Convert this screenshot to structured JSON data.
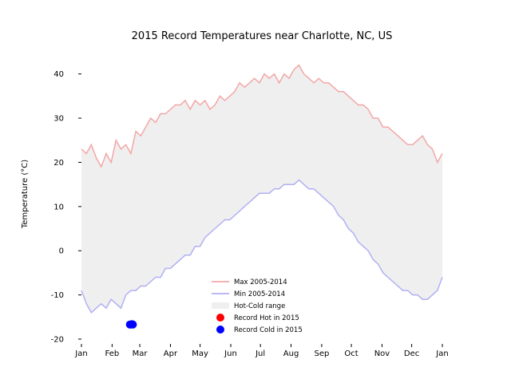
{
  "chart_data": {
    "type": "line",
    "title": "2015 Record Temperatures near Charlotte, NC, US",
    "xlabel": "",
    "ylabel": "Temperature (°C)",
    "ylim": [
      -20,
      45
    ],
    "xlim": [
      0,
      365
    ],
    "y_ticks": [
      -20,
      -10,
      0,
      10,
      20,
      30,
      40
    ],
    "x_ticks": [
      {
        "day": 0,
        "label": "Jan"
      },
      {
        "day": 31,
        "label": "Feb"
      },
      {
        "day": 59,
        "label": "Mar"
      },
      {
        "day": 90,
        "label": "Apr"
      },
      {
        "day": 120,
        "label": "May"
      },
      {
        "day": 151,
        "label": "Jun"
      },
      {
        "day": 181,
        "label": "Jul"
      },
      {
        "day": 212,
        "label": "Aug"
      },
      {
        "day": 243,
        "label": "Sep"
      },
      {
        "day": 273,
        "label": "Oct"
      },
      {
        "day": 304,
        "label": "Nov"
      },
      {
        "day": 334,
        "label": "Dec"
      },
      {
        "day": 365,
        "label": "Jan"
      }
    ],
    "grid": false,
    "legend_position": "lower-center",
    "series": [
      {
        "name": "Max 2005-2014",
        "color": "#f4a6a6",
        "x": [
          0,
          5,
          10,
          15,
          20,
          25,
          30,
          35,
          40,
          45,
          50,
          55,
          60,
          65,
          70,
          75,
          80,
          85,
          90,
          95,
          100,
          105,
          110,
          115,
          120,
          125,
          130,
          135,
          140,
          145,
          150,
          155,
          160,
          165,
          170,
          175,
          180,
          185,
          190,
          195,
          200,
          205,
          210,
          215,
          220,
          225,
          230,
          235,
          240,
          245,
          250,
          255,
          260,
          265,
          270,
          275,
          280,
          285,
          290,
          295,
          300,
          305,
          310,
          315,
          320,
          325,
          330,
          335,
          340,
          345,
          350,
          355,
          360,
          365
        ],
        "y": [
          23,
          22,
          24,
          21,
          19,
          22,
          20,
          25,
          23,
          24,
          22,
          27,
          26,
          28,
          30,
          29,
          31,
          31,
          32,
          33,
          33,
          34,
          32,
          34,
          33,
          34,
          32,
          33,
          35,
          34,
          35,
          36,
          38,
          37,
          38,
          39,
          38,
          40,
          39,
          40,
          38,
          40,
          39,
          41,
          42,
          40,
          39,
          38,
          39,
          38,
          38,
          37,
          36,
          36,
          35,
          34,
          33,
          33,
          32,
          30,
          30,
          28,
          28,
          27,
          26,
          25,
          24,
          24,
          25,
          26,
          24,
          23,
          20,
          22
        ]
      },
      {
        "name": "Min 2005-2014",
        "color": "#b0b0f4",
        "x": [
          0,
          5,
          10,
          15,
          20,
          25,
          30,
          35,
          40,
          45,
          50,
          55,
          60,
          65,
          70,
          75,
          80,
          85,
          90,
          95,
          100,
          105,
          110,
          115,
          120,
          125,
          130,
          135,
          140,
          145,
          150,
          155,
          160,
          165,
          170,
          175,
          180,
          185,
          190,
          195,
          200,
          205,
          210,
          215,
          220,
          225,
          230,
          235,
          240,
          245,
          250,
          255,
          260,
          265,
          270,
          275,
          280,
          285,
          290,
          295,
          300,
          305,
          310,
          315,
          320,
          325,
          330,
          335,
          340,
          345,
          350,
          355,
          360,
          365
        ],
        "y": [
          -9,
          -12,
          -14,
          -13,
          -12,
          -13,
          -11,
          -12,
          -13,
          -10,
          -9,
          -9,
          -8,
          -8,
          -7,
          -6,
          -6,
          -4,
          -4,
          -3,
          -2,
          -1,
          -1,
          1,
          1,
          3,
          4,
          5,
          6,
          7,
          7,
          8,
          9,
          10,
          11,
          12,
          13,
          13,
          13,
          14,
          14,
          15,
          15,
          15,
          16,
          15,
          14,
          14,
          13,
          12,
          11,
          10,
          8,
          7,
          5,
          4,
          2,
          1,
          0,
          -2,
          -3,
          -5,
          -6,
          -7,
          -8,
          -9,
          -9,
          -10,
          -10,
          -11,
          -11,
          -10,
          -9,
          -6
        ]
      }
    ],
    "fill_between": {
      "name": "Hot-Cold range",
      "color": "#efefef",
      "between": [
        "Max 2005-2014",
        "Min 2005-2014"
      ]
    },
    "scatter": [
      {
        "name": "Record Hot in 2015",
        "color": "#ff0000",
        "points": []
      },
      {
        "name": "Record Cold in 2015",
        "color": "#0000ff",
        "points": [
          {
            "x": 49,
            "y": -16.7
          },
          {
            "x": 50,
            "y": -16.7
          },
          {
            "x": 51,
            "y": -16.6
          },
          {
            "x": 52,
            "y": -16.7
          }
        ]
      }
    ]
  }
}
